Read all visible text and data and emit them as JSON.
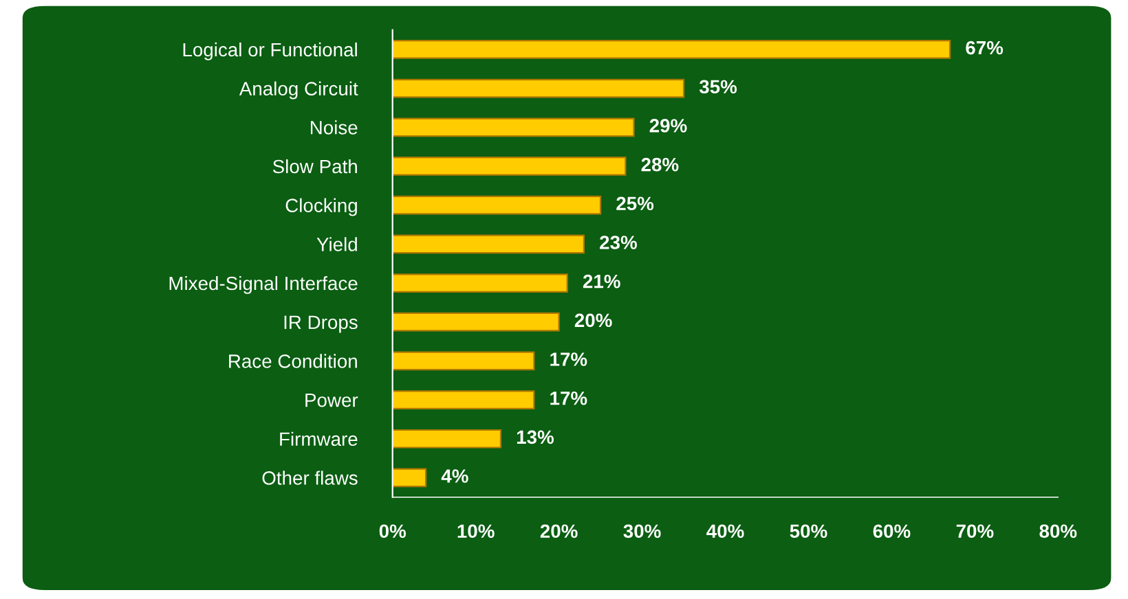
{
  "chart_data": {
    "type": "bar",
    "orientation": "horizontal",
    "categories": [
      "Logical or Functional",
      "Analog Circuit",
      "Noise",
      "Slow Path",
      "Clocking",
      "Yield",
      "Mixed-Signal Interface",
      "IR Drops",
      "Race Condition",
      "Power",
      "Firmware",
      "Other flaws"
    ],
    "values": [
      67,
      35,
      29,
      28,
      25,
      23,
      21,
      20,
      17,
      17,
      13,
      4
    ],
    "value_labels": [
      "67%",
      "35%",
      "29%",
      "28%",
      "25%",
      "23%",
      "21%",
      "20%",
      "17%",
      "17%",
      "13%",
      "4%"
    ],
    "color": "#ffcc00",
    "xlim": [
      0,
      80
    ],
    "xticks": [
      {
        "value": 0,
        "label": "0%"
      },
      {
        "value": 10,
        "label": "10%"
      },
      {
        "value": 20,
        "label": "20%"
      },
      {
        "value": 30,
        "label": "30%"
      },
      {
        "value": 40,
        "label": "40%"
      },
      {
        "value": 50,
        "label": "50%"
      },
      {
        "value": 60,
        "label": "60%"
      },
      {
        "value": 70,
        "label": "70%"
      },
      {
        "value": 80,
        "label": "80%"
      }
    ],
    "grid": false,
    "legend": false
  }
}
